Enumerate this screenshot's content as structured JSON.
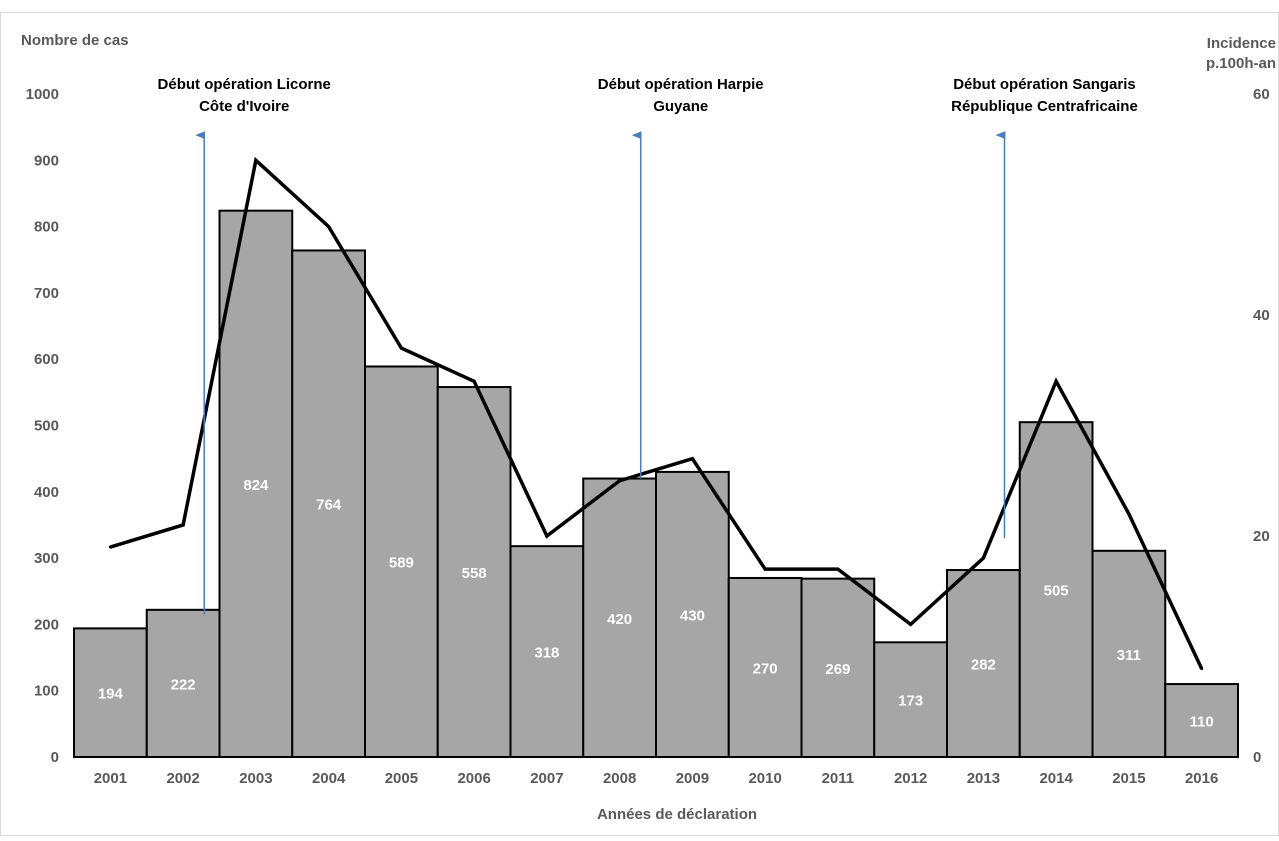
{
  "chart_data": {
    "type": "bar",
    "x": [
      "2001",
      "2002",
      "2003",
      "2004",
      "2005",
      "2006",
      "2007",
      "2008",
      "2009",
      "2010",
      "2011",
      "2012",
      "2013",
      "2014",
      "2015",
      "2016"
    ],
    "series": [
      {
        "values": [
          194,
          222,
          824,
          764,
          589,
          558,
          318,
          420,
          430,
          270,
          269,
          173,
          282,
          505,
          311,
          110
        ],
        "axis": "left",
        "kind": "bar",
        "color": "#a6a6a6"
      },
      {
        "values": [
          19,
          21,
          54,
          48,
          37,
          34,
          20,
          25,
          27,
          17,
          17,
          12,
          18,
          34,
          22,
          8
        ],
        "axis": "right",
        "kind": "line",
        "color": "#000000"
      }
    ],
    "bar_labels": [
      "194",
      "222",
      "824",
      "764",
      "589",
      "558",
      "318",
      "420",
      "430",
      "270",
      "269",
      "173",
      "282",
      "505",
      "311",
      "110"
    ],
    "ylabel": "Nombre de cas",
    "y2label": [
      "Incidence",
      "p.100h-an"
    ],
    "xlabel": "Années de déclaration",
    "ylim": [
      0,
      1000
    ],
    "y2lim": [
      0,
      60
    ],
    "yticks": [
      "0",
      "100",
      "200",
      "300",
      "400",
      "500",
      "600",
      "700",
      "800",
      "900",
      "1000"
    ],
    "y2ticks": [
      "0",
      "20",
      "40",
      "60"
    ],
    "annotations": [
      {
        "lines": [
          "Début opération Licorne",
          "Côte d'Ivoire"
        ],
        "year": "2002",
        "arrow_from": 215,
        "arrow_to": 950
      },
      {
        "lines": [
          "Début opération Harpie",
          "Guyane"
        ],
        "year": "2008",
        "arrow_from": 420,
        "arrow_to": 950
      },
      {
        "lines": [
          "Début opération Sangaris",
          "République Centrafricaine"
        ],
        "year": "2013",
        "arrow_from": 330,
        "arrow_to": 950
      }
    ],
    "grid": false,
    "legend": "none",
    "colors": {
      "bar": "#a6a6a6",
      "line": "#000000",
      "arrow": "#4a7ebb",
      "axis_text": "#595959"
    }
  }
}
